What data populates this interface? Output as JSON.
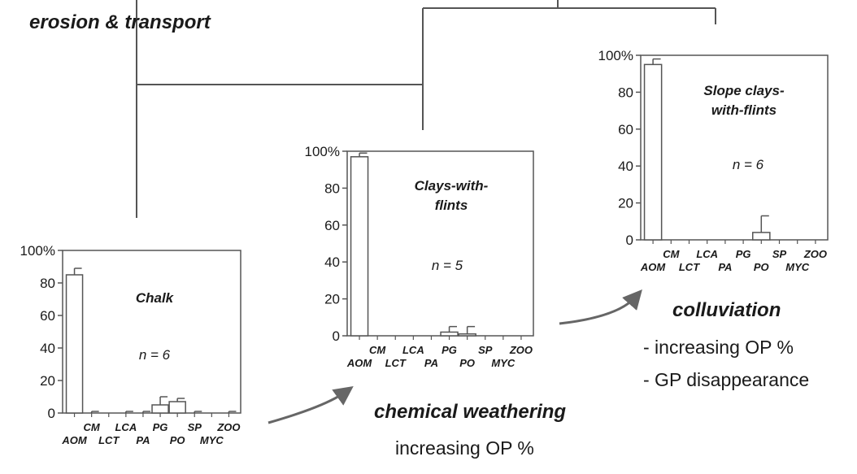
{
  "figure": {
    "top_label": "erosion & transport",
    "process_1": "chemical weathering",
    "process_1_note": "increasing OP %",
    "process_2": "colluviation",
    "process_2_notes": [
      "- increasing OP %",
      "- GP disappearance"
    ]
  },
  "colors": {
    "ink": "#1a1a1a",
    "frame": "#555555",
    "arrow": "#666666"
  },
  "chart_data": [
    {
      "type": "bar",
      "title": "Chalk",
      "annotation": "n = 6",
      "categories": [
        "AOM",
        "CM",
        "LCT",
        "LCA",
        "PA",
        "PG",
        "PO",
        "SP",
        "MYC",
        "ZOO"
      ],
      "values": [
        85,
        0,
        0,
        0,
        0,
        5,
        7,
        0,
        0,
        0
      ],
      "errors": [
        4,
        1,
        0,
        1,
        1,
        5,
        2,
        1,
        0,
        1
      ],
      "ylim": [
        0,
        100
      ],
      "yticks": [
        "0",
        "20",
        "40",
        "60",
        "80",
        "100%"
      ],
      "grid": false
    },
    {
      "type": "bar",
      "title": "Clays-with-flints",
      "annotation": "n = 5",
      "categories": [
        "AOM",
        "CM",
        "LCT",
        "LCA",
        "PA",
        "PG",
        "PO",
        "SP",
        "MYC",
        "ZOO"
      ],
      "values": [
        97,
        0,
        0,
        0,
        0,
        2,
        1,
        0,
        0,
        0
      ],
      "errors": [
        2,
        0,
        0,
        0,
        0,
        3,
        4,
        0,
        0,
        0
      ],
      "ylim": [
        0,
        100
      ],
      "yticks": [
        "0",
        "20",
        "40",
        "60",
        "80",
        "100%"
      ],
      "grid": false
    },
    {
      "type": "bar",
      "title": "Slope clays-with-flints",
      "annotation": "n = 6",
      "categories": [
        "AOM",
        "CM",
        "LCT",
        "LCA",
        "PA",
        "PG",
        "PO",
        "SP",
        "MYC",
        "ZOO"
      ],
      "values": [
        95,
        0,
        0,
        0,
        0,
        0,
        4,
        0,
        0,
        0
      ],
      "errors": [
        3,
        0,
        0,
        0,
        0,
        0,
        9,
        0,
        0,
        0
      ],
      "ylim": [
        0,
        100
      ],
      "yticks": [
        "0",
        "20",
        "40",
        "60",
        "80",
        "100%"
      ],
      "grid": false
    }
  ]
}
